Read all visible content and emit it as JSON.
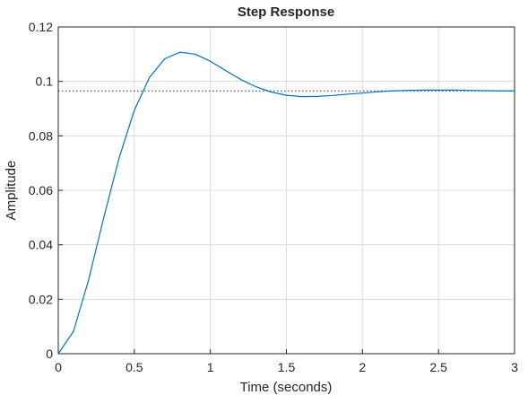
{
  "chart_data": {
    "type": "line",
    "title": "Step Response",
    "x_label": "Time (seconds)",
    "y_label": "Amplitude",
    "x": [
      0,
      0.1,
      0.2,
      0.3,
      0.4,
      0.5,
      0.6,
      0.7,
      0.8,
      0.9,
      1.0,
      1.1,
      1.2,
      1.3,
      1.4,
      1.5,
      1.6,
      1.7,
      1.8,
      1.9,
      2.0,
      2.1,
      2.2,
      2.3,
      2.4,
      2.5,
      2.6,
      2.7,
      2.8,
      2.9,
      3.0
    ],
    "series": [
      {
        "color": "#0072bd",
        "values": [
          0,
          0.0082,
          0.0272,
          0.0502,
          0.0719,
          0.0894,
          0.1015,
          0.1083,
          0.1107,
          0.11,
          0.1074,
          0.104,
          0.1007,
          0.098,
          0.0961,
          0.0949,
          0.0944,
          0.0945,
          0.0948,
          0.0953,
          0.0957,
          0.0962,
          0.0965,
          0.0967,
          0.0968,
          0.0968,
          0.0968,
          0.0967,
          0.0966,
          0.0965,
          0.0965
        ]
      }
    ],
    "steady_state": 0.0965,
    "xlim": [
      0,
      3
    ],
    "ylim": [
      0,
      0.12
    ],
    "xticks": [
      0,
      0.5,
      1,
      1.5,
      2,
      2.5,
      3
    ],
    "yticks": [
      0,
      0.02,
      0.04,
      0.06,
      0.08,
      0.1,
      0.12
    ],
    "grid": true
  }
}
